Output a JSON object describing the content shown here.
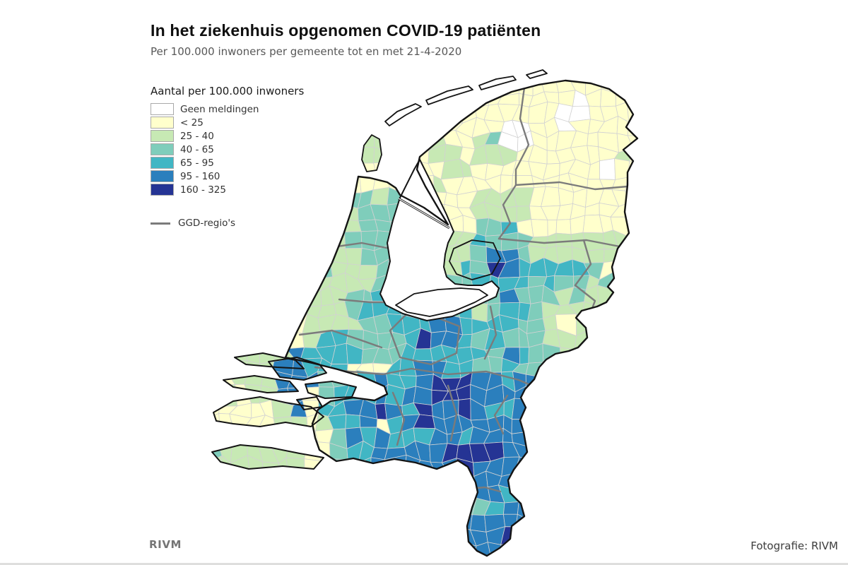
{
  "header": {
    "title": "In het ziekenhuis opgenomen COVID-19 patiënten",
    "subtitle": "Per 100.000 inwoners per gemeente tot en met 21-4-2020"
  },
  "legend": {
    "title": "Aantal per 100.000 inwoners",
    "items": [
      {
        "label": "Geen meldingen",
        "color": "#ffffff"
      },
      {
        "label": "< 25",
        "color": "#ffffcc"
      },
      {
        "label": "25 - 40",
        "color": "#c7e9b4"
      },
      {
        "label": "40 - 65",
        "color": "#7fcdbb"
      },
      {
        "label": "65 - 95",
        "color": "#41b6c4"
      },
      {
        "label": "95 - 160",
        "color": "#2b7fbd"
      },
      {
        "label": "160 - 325",
        "color": "#253494"
      }
    ],
    "region_line_label": "GGD-regio's",
    "region_line_color": "#7b7b7b"
  },
  "footer": {
    "source": "RIVM",
    "credit": "Fotografie: RIVM"
  },
  "map": {
    "type": "choropleth",
    "region": "Netherlands, municipalities (gemeenten) with GGD region boundaries",
    "classes": [
      "Geen meldingen",
      "< 25",
      "25 - 40",
      "40 - 65",
      "65 - 95",
      "95 - 160",
      "160 - 325"
    ],
    "colors": [
      "#ffffff",
      "#ffffcc",
      "#c7e9b4",
      "#7fcdbb",
      "#41b6c4",
      "#2b7fbd",
      "#253494"
    ],
    "borders": {
      "municipality": "#d2d2d2",
      "ggd_region": "#7b7b7b",
      "country": "#141414"
    },
    "seed_encoding": "x,y,class_index — estimated density pattern read from the map pixels",
    "density_seeds": [
      [
        520,
        245,
        1
      ],
      [
        530,
        215,
        2
      ],
      [
        600,
        240,
        1
      ],
      [
        588,
        296,
        5
      ],
      [
        602,
        272,
        1
      ],
      [
        612,
        288,
        1
      ],
      [
        636,
        316,
        1
      ],
      [
        660,
        180,
        1
      ],
      [
        720,
        150,
        1
      ],
      [
        640,
        230,
        2
      ],
      [
        690,
        215,
        2
      ],
      [
        610,
        270,
        2
      ],
      [
        660,
        255,
        1
      ],
      [
        700,
        250,
        1
      ],
      [
        622,
        305,
        1
      ],
      [
        790,
        130,
        1
      ],
      [
        845,
        150,
        1
      ],
      [
        810,
        160,
        0
      ],
      [
        770,
        160,
        1
      ],
      [
        820,
        185,
        1
      ],
      [
        732,
        172,
        0
      ],
      [
        718,
        160,
        1
      ],
      [
        745,
        162,
        1
      ],
      [
        745,
        240,
        1
      ],
      [
        800,
        230,
        1
      ],
      [
        850,
        220,
        1
      ],
      [
        880,
        250,
        1
      ],
      [
        855,
        238,
        0
      ],
      [
        830,
        250,
        1
      ],
      [
        875,
        225,
        1
      ],
      [
        780,
        280,
        1
      ],
      [
        830,
        290,
        1
      ],
      [
        868,
        300,
        1
      ],
      [
        740,
        290,
        2
      ],
      [
        700,
        300,
        2
      ],
      [
        760,
        320,
        1
      ],
      [
        820,
        320,
        1
      ],
      [
        855,
        270,
        1
      ],
      [
        700,
        340,
        3
      ],
      [
        740,
        350,
        3
      ],
      [
        780,
        350,
        2
      ],
      [
        820,
        355,
        2
      ],
      [
        858,
        360,
        2
      ],
      [
        878,
        392,
        1
      ],
      [
        848,
        400,
        2
      ],
      [
        818,
        402,
        3
      ],
      [
        780,
        390,
        4
      ],
      [
        742,
        382,
        4
      ],
      [
        712,
        365,
        5
      ],
      [
        703,
        374,
        6
      ],
      [
        690,
        392,
        4
      ],
      [
        722,
        402,
        4
      ],
      [
        762,
        420,
        3
      ],
      [
        800,
        432,
        2
      ],
      [
        838,
        432,
        2
      ],
      [
        866,
        442,
        3
      ],
      [
        878,
        420,
        2
      ],
      [
        848,
        462,
        2
      ],
      [
        820,
        470,
        2
      ],
      [
        782,
        462,
        2
      ],
      [
        802,
        500,
        2
      ],
      [
        830,
        502,
        2
      ],
      [
        855,
        488,
        1
      ],
      [
        655,
        348,
        2
      ],
      [
        682,
        370,
        3
      ],
      [
        656,
        382,
        3
      ],
      [
        600,
        428,
        3
      ],
      [
        632,
        422,
        3
      ],
      [
        662,
        418,
        3
      ],
      [
        582,
        436,
        4
      ],
      [
        520,
        280,
        3
      ],
      [
        545,
        300,
        3
      ],
      [
        530,
        322,
        3
      ],
      [
        506,
        332,
        2
      ],
      [
        522,
        352,
        3
      ],
      [
        542,
        362,
        3
      ],
      [
        500,
        372,
        2
      ],
      [
        522,
        386,
        2
      ],
      [
        542,
        392,
        3
      ],
      [
        492,
        396,
        2
      ],
      [
        512,
        412,
        3
      ],
      [
        536,
        416,
        4
      ],
      [
        556,
        422,
        4
      ],
      [
        482,
        420,
        2
      ],
      [
        502,
        436,
        3
      ],
      [
        522,
        442,
        4
      ],
      [
        532,
        463,
        6
      ],
      [
        546,
        452,
        4
      ],
      [
        516,
        456,
        3
      ],
      [
        492,
        456,
        2
      ],
      [
        470,
        442,
        2
      ],
      [
        562,
        452,
        4
      ],
      [
        582,
        462,
        4
      ],
      [
        602,
        456,
        4
      ],
      [
        622,
        462,
        5
      ],
      [
        606,
        483,
        6
      ],
      [
        590,
        480,
        4
      ],
      [
        570,
        482,
        3
      ],
      [
        622,
        482,
        5
      ],
      [
        642,
        472,
        5
      ],
      [
        652,
        487,
        4
      ],
      [
        632,
        502,
        4
      ],
      [
        602,
        507,
        4
      ],
      [
        572,
        507,
        3
      ],
      [
        666,
        452,
        4
      ],
      [
        692,
        442,
        3
      ],
      [
        702,
        472,
        4
      ],
      [
        682,
        482,
        4
      ],
      [
        662,
        502,
        4
      ],
      [
        692,
        512,
        3
      ],
      [
        722,
        482,
        3
      ],
      [
        742,
        462,
        3
      ],
      [
        722,
        442,
        4
      ],
      [
        732,
        507,
        4
      ],
      [
        752,
        522,
        3
      ],
      [
        772,
        522,
        3
      ],
      [
        722,
        532,
        4
      ],
      [
        702,
        532,
        4
      ],
      [
        742,
        547,
        5
      ],
      [
        762,
        547,
        5
      ],
      [
        756,
        570,
        5
      ],
      [
        735,
        575,
        5
      ],
      [
        450,
        470,
        3
      ],
      [
        436,
        486,
        2
      ],
      [
        466,
        456,
        2
      ],
      [
        426,
        466,
        1
      ],
      [
        441,
        451,
        2
      ],
      [
        462,
        482,
        4
      ],
      [
        482,
        492,
        4
      ],
      [
        502,
        502,
        4
      ],
      [
        522,
        492,
        3
      ],
      [
        542,
        502,
        3
      ],
      [
        512,
        521,
        1
      ],
      [
        532,
        526,
        2
      ],
      [
        482,
        512,
        4
      ],
      [
        462,
        502,
        4
      ],
      [
        446,
        506,
        4
      ],
      [
        562,
        522,
        4
      ],
      [
        582,
        512,
        4
      ],
      [
        602,
        522,
        5
      ],
      [
        622,
        527,
        5
      ],
      [
        642,
        532,
        4
      ],
      [
        542,
        541,
        5
      ],
      [
        562,
        546,
        4
      ],
      [
        522,
        551,
        4
      ],
      [
        420,
        522,
        5
      ],
      [
        465,
        552,
        3
      ],
      [
        375,
        510,
        2
      ],
      [
        365,
        545,
        2
      ],
      [
        435,
        572,
        1
      ],
      [
        420,
        575,
        5
      ],
      [
        325,
        585,
        1
      ],
      [
        360,
        590,
        1
      ],
      [
        405,
        585,
        2
      ],
      [
        332,
        570,
        2
      ],
      [
        370,
        648,
        2
      ],
      [
        420,
        645,
        2
      ],
      [
        310,
        650,
        2
      ],
      [
        430,
        648,
        1
      ],
      [
        600,
        541,
        5
      ],
      [
        631,
        546,
        6
      ],
      [
        656,
        556,
        6
      ],
      [
        641,
        566,
        6
      ],
      [
        666,
        576,
        6
      ],
      [
        681,
        561,
        5
      ],
      [
        701,
        556,
        5
      ],
      [
        721,
        561,
        5
      ],
      [
        598,
        588,
        6
      ],
      [
        528,
        586,
        6
      ],
      [
        470,
        581,
        4
      ],
      [
        490,
        571,
        4
      ],
      [
        510,
        576,
        5
      ],
      [
        551,
        576,
        5
      ],
      [
        576,
        566,
        5
      ],
      [
        591,
        581,
        4
      ],
      [
        611,
        581,
        5
      ],
      [
        631,
        586,
        5
      ],
      [
        651,
        591,
        5
      ],
      [
        671,
        591,
        5
      ],
      [
        691,
        581,
        4
      ],
      [
        711,
        581,
        4
      ],
      [
        731,
        581,
        5
      ],
      [
        461,
        601,
        2
      ],
      [
        481,
        601,
        4
      ],
      [
        501,
        611,
        4
      ],
      [
        521,
        601,
        5
      ],
      [
        542,
        605,
        1
      ],
      [
        566,
        601,
        4
      ],
      [
        586,
        606,
        5
      ],
      [
        606,
        611,
        4
      ],
      [
        626,
        616,
        5
      ],
      [
        646,
        616,
        5
      ],
      [
        666,
        611,
        4
      ],
      [
        686,
        616,
        5
      ],
      [
        706,
        611,
        5
      ],
      [
        456,
        626,
        1
      ],
      [
        486,
        631,
        3
      ],
      [
        516,
        631,
        4
      ],
      [
        546,
        633,
        5
      ],
      [
        571,
        629,
        4
      ],
      [
        596,
        636,
        5
      ],
      [
        621,
        641,
        5
      ],
      [
        646,
        646,
        6
      ],
      [
        669,
        646,
        6
      ],
      [
        691,
        641,
        5
      ],
      [
        711,
        636,
        5
      ],
      [
        701,
        601,
        5
      ],
      [
        721,
        621,
        5
      ],
      [
        701,
        641,
        5
      ],
      [
        691,
        661,
        5
      ],
      [
        681,
        681,
        5
      ],
      [
        691,
        701,
        5
      ],
      [
        701,
        716,
        4
      ],
      [
        679,
        716,
        3
      ],
      [
        691,
        731,
        5
      ],
      [
        711,
        731,
        5
      ],
      [
        701,
        751,
        5
      ],
      [
        681,
        751,
        5
      ],
      [
        690,
        766,
        6
      ],
      [
        711,
        761,
        5
      ],
      [
        671,
        771,
        5
      ],
      [
        699,
        781,
        5
      ]
    ]
  }
}
